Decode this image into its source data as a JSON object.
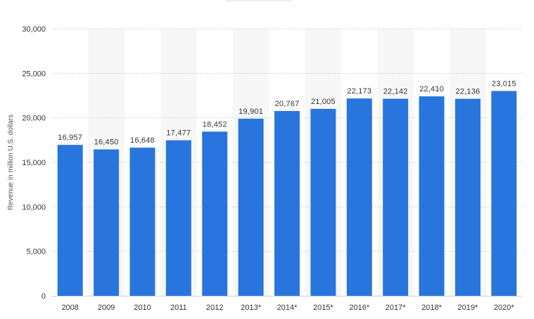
{
  "chart_data": {
    "type": "bar",
    "title": "",
    "xlabel": "",
    "ylabel": "Revenue in million U.S. dollars",
    "categories": [
      "2008",
      "2009",
      "2010",
      "2011",
      "2012",
      "2013*",
      "2014*",
      "2015*",
      "2016*",
      "2017*",
      "2018*",
      "2019*",
      "2020*"
    ],
    "values": [
      16957,
      16450,
      16648,
      17477,
      18452,
      19901,
      20767,
      21005,
      22173,
      22142,
      22410,
      22136,
      23015
    ],
    "value_labels": [
      "16,957",
      "16,450",
      "16,648",
      "17,477",
      "18,452",
      "19,901",
      "20,767",
      "21,005",
      "22,173",
      "22,142",
      "22,410",
      "22,136",
      "23,015"
    ],
    "ylim": [
      0,
      30000
    ],
    "yticks": [
      0,
      5000,
      10000,
      15000,
      20000,
      25000,
      30000
    ],
    "ytick_labels": [
      "0",
      "5,000",
      "10,000",
      "15,000",
      "20,000",
      "25,000",
      "30,000"
    ],
    "grid": true,
    "legend": "none",
    "colors": {
      "bar": "#2876dd",
      "grid": "#c7c7c7",
      "band": "#f7f7f7"
    }
  }
}
